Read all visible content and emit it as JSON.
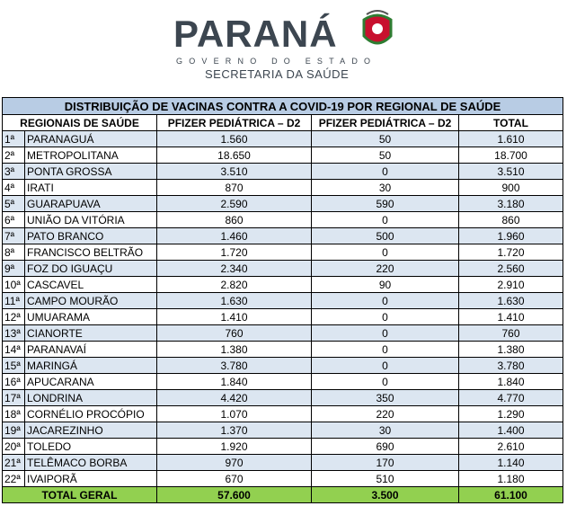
{
  "header": {
    "title": "PARANÁ",
    "subtitle": "GOVERNO DO ESTADO",
    "department": "SECRETARIA DA SAÚDE"
  },
  "table": {
    "title": "DISTRIBUIÇÃO DE VACINAS CONTRA A COVID-19 POR REGIONAL DE SAÚDE",
    "columns": [
      "REGIONAIS DE SAÚDE",
      "PFIZER PEDIÁTRICA – D2",
      "PFIZER PEDIÁTRICA – D2",
      "TOTAL"
    ],
    "rows": [
      [
        "1ª",
        "PARANAGUÁ",
        "1.560",
        "50",
        "1.610"
      ],
      [
        "2ª",
        "METROPOLITANA",
        "18.650",
        "50",
        "18.700"
      ],
      [
        "3ª",
        "PONTA GROSSA",
        "3.510",
        "0",
        "3.510"
      ],
      [
        "4ª",
        "IRATI",
        "870",
        "30",
        "900"
      ],
      [
        "5ª",
        "GUARAPUAVA",
        "2.590",
        "590",
        "3.180"
      ],
      [
        "6ª",
        "UNIÃO DA VITÓRIA",
        "860",
        "0",
        "860"
      ],
      [
        "7ª",
        "PATO BRANCO",
        "1.460",
        "500",
        "1.960"
      ],
      [
        "8ª",
        "FRANCISCO BELTRÃO",
        "1.720",
        "0",
        "1.720"
      ],
      [
        "9ª",
        "FOZ DO IGUAÇU",
        "2.340",
        "220",
        "2.560"
      ],
      [
        "10ª",
        "CASCAVEL",
        "2.820",
        "90",
        "2.910"
      ],
      [
        "11ª",
        "CAMPO MOURÃO",
        "1.630",
        "0",
        "1.630"
      ],
      [
        "12ª",
        "UMUARAMA",
        "1.410",
        "0",
        "1.410"
      ],
      [
        "13ª",
        "CIANORTE",
        "760",
        "0",
        "760"
      ],
      [
        "14ª",
        "PARANAVAÍ",
        "1.380",
        "0",
        "1.380"
      ],
      [
        "15ª",
        "MARINGÁ",
        "3.780",
        "0",
        "3.780"
      ],
      [
        "16ª",
        "APUCARANA",
        "1.840",
        "0",
        "1.840"
      ],
      [
        "17ª",
        "LONDRINA",
        "4.420",
        "350",
        "4.770"
      ],
      [
        "18ª",
        "CORNÉLIO PROCÓPIO",
        "1.070",
        "220",
        "1.290"
      ],
      [
        "19ª",
        "JACAREZINHO",
        "1.370",
        "30",
        "1.400"
      ],
      [
        "20ª",
        "TOLEDO",
        "1.920",
        "690",
        "2.610"
      ],
      [
        "21ª",
        "TELÊMACO BORBA",
        "970",
        "170",
        "1.140"
      ],
      [
        "22ª",
        "IVAIPORÃ",
        "670",
        "510",
        "1.180"
      ]
    ],
    "total": {
      "label": "TOTAL GERAL",
      "values": [
        "57.600",
        "3.500",
        "61.100"
      ]
    }
  }
}
